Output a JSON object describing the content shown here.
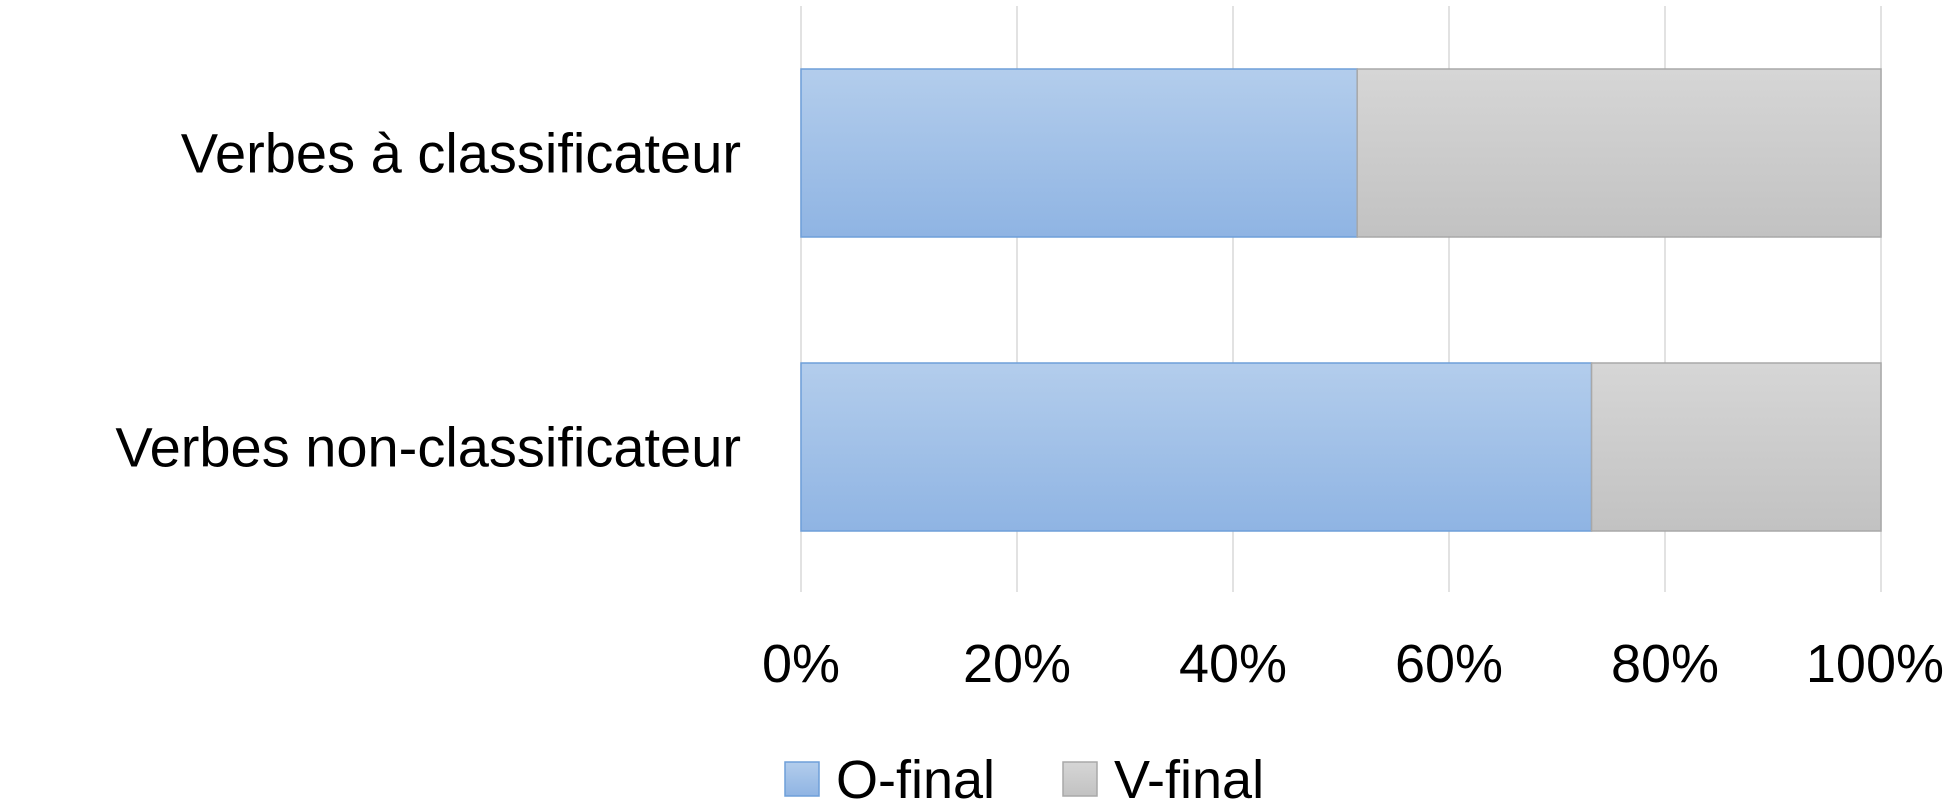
{
  "chart_data": {
    "type": "bar",
    "orientation": "horizontal",
    "stacked": "percent",
    "title": "",
    "xlabel": "",
    "ylabel": "",
    "categories": [
      "Verbes à classificateur",
      "Verbes non-classificateur"
    ],
    "series": [
      {
        "name": "O-final",
        "values": [
          51.5,
          73.2
        ],
        "color": "#9dbde6"
      },
      {
        "name": "V-final",
        "values": [
          48.5,
          26.8
        ],
        "color": "#c8c8c8"
      }
    ],
    "xlim": [
      0,
      100
    ],
    "x_ticks": [
      "0%",
      "20%",
      "40%",
      "60%",
      "80%",
      "100%"
    ],
    "grid": "vertical",
    "legend": "bottom"
  }
}
